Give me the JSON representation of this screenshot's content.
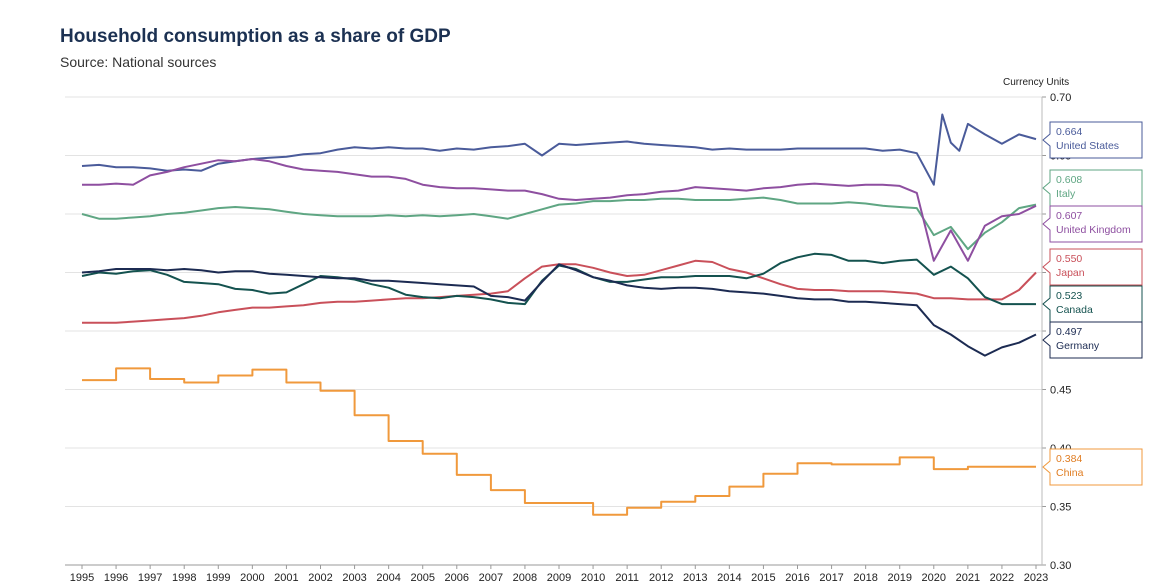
{
  "title": "Household consumption as a share of GDP",
  "subtitle": "Source: National sources",
  "chart_data": {
    "type": "line",
    "title": "Household consumption as a share of GDP",
    "subtitle": "Source: National sources",
    "ylabel": "Currency Units",
    "ylim": [
      0.3,
      0.7
    ],
    "yticks": [
      "0.30",
      "0.35",
      "0.40",
      "0.45",
      "0.50",
      "0.55",
      "0.60",
      "0.65",
      "0.70"
    ],
    "xlim": [
      1995,
      2023
    ],
    "xticks": [
      "1995",
      "1996",
      "1997",
      "1998",
      "1999",
      "2000",
      "2001",
      "2002",
      "2003",
      "2004",
      "2005",
      "2006",
      "2007",
      "2008",
      "2009",
      "2010",
      "2011",
      "2012",
      "2013",
      "2014",
      "2015",
      "2016",
      "2017",
      "2018",
      "2019",
      "2020",
      "2021",
      "2022",
      "2023"
    ],
    "grid": true,
    "legend": "end-labels-right",
    "series": [
      {
        "name": "United States",
        "label_value": "0.664",
        "color": "#4a5b9a",
        "step": false,
        "x": [
          1995,
          1995.5,
          1996,
          1996.5,
          1997,
          1997.5,
          1998,
          1998.5,
          1999,
          1999.5,
          2000,
          2000.5,
          2001,
          2001.5,
          2002,
          2002.5,
          2003,
          2003.5,
          2004,
          2004.5,
          2005,
          2005.5,
          2006,
          2006.5,
          2007,
          2007.5,
          2008,
          2008.5,
          2009,
          2009.5,
          2010,
          2010.5,
          2011,
          2011.5,
          2012,
          2012.5,
          2013,
          2013.5,
          2014,
          2014.5,
          2015,
          2015.5,
          2016,
          2016.5,
          2017,
          2017.5,
          2018,
          2018.5,
          2019,
          2019.5,
          2020,
          2020.25,
          2020.5,
          2020.75,
          2021,
          2021.5,
          2022,
          2022.5,
          2023
        ],
        "values": [
          0.641,
          0.642,
          0.64,
          0.64,
          0.639,
          0.637,
          0.638,
          0.637,
          0.643,
          0.645,
          0.647,
          0.648,
          0.649,
          0.651,
          0.652,
          0.655,
          0.657,
          0.656,
          0.657,
          0.656,
          0.656,
          0.654,
          0.656,
          0.655,
          0.657,
          0.658,
          0.66,
          0.65,
          0.66,
          0.659,
          0.66,
          0.661,
          0.662,
          0.66,
          0.659,
          0.658,
          0.657,
          0.655,
          0.656,
          0.655,
          0.655,
          0.655,
          0.656,
          0.656,
          0.656,
          0.656,
          0.656,
          0.654,
          0.655,
          0.652,
          0.625,
          0.685,
          0.661,
          0.654,
          0.677,
          0.668,
          0.66,
          0.668,
          0.664
        ]
      },
      {
        "name": "Italy",
        "label_value": "0.608",
        "color": "#5fa683",
        "step": false,
        "x": [
          1995,
          1995.5,
          1996,
          1996.5,
          1997,
          1997.5,
          1998,
          1998.5,
          1999,
          1999.5,
          2000,
          2000.5,
          2001,
          2001.5,
          2002,
          2002.5,
          2003,
          2003.5,
          2004,
          2004.5,
          2005,
          2005.5,
          2006,
          2006.5,
          2007,
          2007.5,
          2008,
          2008.5,
          2009,
          2009.5,
          2010,
          2010.5,
          2011,
          2011.5,
          2012,
          2012.5,
          2013,
          2013.5,
          2014,
          2014.5,
          2015,
          2015.5,
          2016,
          2016.5,
          2017,
          2017.5,
          2018,
          2018.5,
          2019,
          2019.5,
          2020,
          2020.5,
          2021,
          2021.5,
          2022,
          2022.5,
          2023
        ],
        "values": [
          0.6,
          0.596,
          0.596,
          0.597,
          0.598,
          0.6,
          0.601,
          0.603,
          0.605,
          0.606,
          0.605,
          0.604,
          0.602,
          0.6,
          0.599,
          0.598,
          0.598,
          0.598,
          0.599,
          0.598,
          0.599,
          0.598,
          0.599,
          0.6,
          0.598,
          0.596,
          0.6,
          0.604,
          0.608,
          0.609,
          0.611,
          0.611,
          0.612,
          0.612,
          0.613,
          0.613,
          0.612,
          0.612,
          0.612,
          0.613,
          0.614,
          0.612,
          0.609,
          0.609,
          0.609,
          0.61,
          0.609,
          0.607,
          0.606,
          0.605,
          0.582,
          0.589,
          0.57,
          0.584,
          0.593,
          0.605,
          0.608
        ]
      },
      {
        "name": "United Kingdom",
        "label_value": "0.607",
        "color": "#8e4fa0",
        "step": false,
        "x": [
          1995,
          1995.5,
          1996,
          1996.5,
          1997,
          1997.5,
          1998,
          1998.5,
          1999,
          1999.5,
          2000,
          2000.5,
          2001,
          2001.5,
          2002,
          2002.5,
          2003,
          2003.5,
          2004,
          2004.5,
          2005,
          2005.5,
          2006,
          2006.5,
          2007,
          2007.5,
          2008,
          2008.5,
          2009,
          2009.5,
          2010,
          2010.5,
          2011,
          2011.5,
          2012,
          2012.5,
          2013,
          2013.5,
          2014,
          2014.5,
          2015,
          2015.5,
          2016,
          2016.5,
          2017,
          2017.5,
          2018,
          2018.5,
          2019,
          2019.5,
          2020,
          2020.5,
          2021,
          2021.5,
          2022,
          2022.5,
          2023
        ],
        "values": [
          0.625,
          0.625,
          0.626,
          0.625,
          0.633,
          0.636,
          0.64,
          0.643,
          0.646,
          0.645,
          0.647,
          0.645,
          0.641,
          0.638,
          0.637,
          0.636,
          0.634,
          0.632,
          0.632,
          0.63,
          0.625,
          0.623,
          0.622,
          0.622,
          0.621,
          0.62,
          0.62,
          0.617,
          0.613,
          0.612,
          0.613,
          0.614,
          0.616,
          0.617,
          0.619,
          0.62,
          0.623,
          0.622,
          0.621,
          0.62,
          0.622,
          0.623,
          0.625,
          0.626,
          0.625,
          0.624,
          0.625,
          0.625,
          0.624,
          0.618,
          0.56,
          0.586,
          0.56,
          0.59,
          0.598,
          0.6,
          0.607
        ]
      },
      {
        "name": "Japan",
        "label_value": "0.550",
        "color": "#c9505a",
        "step": false,
        "x": [
          1995,
          1995.5,
          1996,
          1996.5,
          1997,
          1997.5,
          1998,
          1998.5,
          1999,
          1999.5,
          2000,
          2000.5,
          2001,
          2001.5,
          2002,
          2002.5,
          2003,
          2003.5,
          2004,
          2004.5,
          2005,
          2005.5,
          2006,
          2006.5,
          2007,
          2007.5,
          2008,
          2008.5,
          2009,
          2009.5,
          2010,
          2010.5,
          2011,
          2011.5,
          2012,
          2012.5,
          2013,
          2013.5,
          2014,
          2014.5,
          2015,
          2015.5,
          2016,
          2016.5,
          2017,
          2017.5,
          2018,
          2018.5,
          2019,
          2019.5,
          2020,
          2020.5,
          2021,
          2021.5,
          2022,
          2022.5,
          2023
        ],
        "values": [
          0.507,
          0.507,
          0.507,
          0.508,
          0.509,
          0.51,
          0.511,
          0.513,
          0.516,
          0.518,
          0.52,
          0.52,
          0.521,
          0.522,
          0.524,
          0.525,
          0.525,
          0.526,
          0.527,
          0.528,
          0.528,
          0.529,
          0.53,
          0.531,
          0.532,
          0.534,
          0.545,
          0.555,
          0.557,
          0.557,
          0.554,
          0.55,
          0.547,
          0.548,
          0.552,
          0.556,
          0.56,
          0.559,
          0.553,
          0.55,
          0.545,
          0.54,
          0.536,
          0.535,
          0.535,
          0.534,
          0.534,
          0.534,
          0.533,
          0.532,
          0.528,
          0.528,
          0.527,
          0.527,
          0.527,
          0.535,
          0.55
        ]
      },
      {
        "name": "Canada",
        "label_value": "0.523",
        "color": "#14524f",
        "step": false,
        "x": [
          1995,
          1995.5,
          1996,
          1996.5,
          1997,
          1997.5,
          1998,
          1998.5,
          1999,
          1999.5,
          2000,
          2000.5,
          2001,
          2001.5,
          2002,
          2002.5,
          2003,
          2003.5,
          2004,
          2004.5,
          2005,
          2005.5,
          2006,
          2006.5,
          2007,
          2007.5,
          2008,
          2008.5,
          2009,
          2009.5,
          2010,
          2010.5,
          2011,
          2011.5,
          2012,
          2012.5,
          2013,
          2013.5,
          2014,
          2014.5,
          2015,
          2015.5,
          2016,
          2016.5,
          2017,
          2017.5,
          2018,
          2018.5,
          2019,
          2019.5,
          2020,
          2020.5,
          2021,
          2021.5,
          2022,
          2022.5,
          2023
        ],
        "values": [
          0.547,
          0.55,
          0.549,
          0.551,
          0.552,
          0.548,
          0.542,
          0.541,
          0.54,
          0.536,
          0.535,
          0.532,
          0.533,
          0.54,
          0.547,
          0.546,
          0.544,
          0.54,
          0.537,
          0.531,
          0.529,
          0.528,
          0.53,
          0.529,
          0.527,
          0.524,
          0.523,
          0.543,
          0.556,
          0.553,
          0.546,
          0.542,
          0.542,
          0.544,
          0.546,
          0.546,
          0.547,
          0.547,
          0.547,
          0.545,
          0.549,
          0.558,
          0.563,
          0.566,
          0.565,
          0.56,
          0.56,
          0.558,
          0.56,
          0.561,
          0.548,
          0.555,
          0.545,
          0.529,
          0.523,
          0.523,
          0.523
        ]
      },
      {
        "name": "Germany",
        "label_value": "0.497",
        "color": "#1c2b52",
        "step": false,
        "x": [
          1995,
          1995.5,
          1996,
          1996.5,
          1997,
          1997.5,
          1998,
          1998.5,
          1999,
          1999.5,
          2000,
          2000.5,
          2001,
          2001.5,
          2002,
          2002.5,
          2003,
          2003.5,
          2004,
          2004.5,
          2005,
          2005.5,
          2006,
          2006.5,
          2007,
          2007.5,
          2008,
          2008.5,
          2009,
          2009.5,
          2010,
          2010.5,
          2011,
          2011.5,
          2012,
          2012.5,
          2013,
          2013.5,
          2014,
          2014.5,
          2015,
          2015.5,
          2016,
          2016.5,
          2017,
          2017.5,
          2018,
          2018.5,
          2019,
          2019.5,
          2020,
          2020.5,
          2021,
          2021.5,
          2022,
          2022.5,
          2023
        ],
        "values": [
          0.55,
          0.551,
          0.553,
          0.553,
          0.553,
          0.552,
          0.553,
          0.552,
          0.55,
          0.551,
          0.551,
          0.549,
          0.548,
          0.547,
          0.546,
          0.545,
          0.545,
          0.543,
          0.543,
          0.542,
          0.541,
          0.54,
          0.539,
          0.538,
          0.53,
          0.529,
          0.526,
          0.542,
          0.557,
          0.552,
          0.546,
          0.543,
          0.539,
          0.537,
          0.536,
          0.537,
          0.537,
          0.536,
          0.534,
          0.533,
          0.532,
          0.53,
          0.528,
          0.527,
          0.527,
          0.525,
          0.525,
          0.524,
          0.523,
          0.522,
          0.505,
          0.497,
          0.487,
          0.479,
          0.486,
          0.49,
          0.497
        ]
      },
      {
        "name": "China",
        "label_value": "0.384",
        "color": "#f0993c",
        "step": true,
        "x": [
          1995,
          1996,
          1997,
          1998,
          1999,
          2000,
          2001,
          2002,
          2003,
          2004,
          2005,
          2006,
          2007,
          2008,
          2009,
          2010,
          2011,
          2012,
          2013,
          2014,
          2015,
          2016,
          2017,
          2018,
          2019,
          2020,
          2021,
          2022
        ],
        "values": [
          0.458,
          0.468,
          0.459,
          0.456,
          0.462,
          0.467,
          0.456,
          0.449,
          0.428,
          0.406,
          0.395,
          0.377,
          0.364,
          0.353,
          0.353,
          0.343,
          0.349,
          0.354,
          0.359,
          0.367,
          0.378,
          0.387,
          0.386,
          0.386,
          0.392,
          0.382,
          0.384,
          0.384
        ]
      }
    ]
  }
}
